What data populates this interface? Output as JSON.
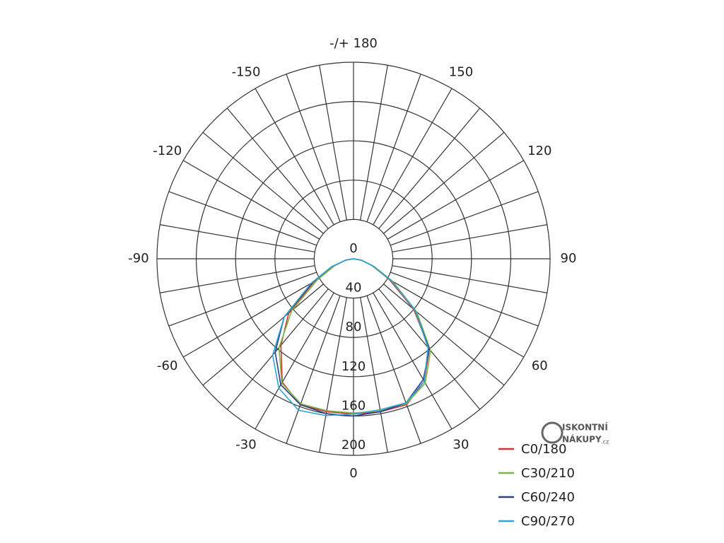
{
  "chart_data": {
    "type": "polar",
    "rlim": [
      0,
      200
    ],
    "rticks": [
      0,
      40,
      80,
      120,
      160,
      200
    ],
    "angle_ticks": [
      0,
      30,
      60,
      90,
      120,
      150,
      {
        "value": 180,
        "label": "-/+ 180"
      },
      -150,
      -120,
      -90,
      -60,
      -30
    ],
    "angle_grid_step": 10,
    "angles": [
      -90,
      -80,
      -70,
      -60,
      -50,
      -40,
      -30,
      -20,
      -10,
      0,
      10,
      20,
      30,
      40,
      50,
      60,
      70,
      80,
      90
    ],
    "series": [
      {
        "name": "C0/180",
        "color": "#d2332d",
        "values": [
          0,
          8,
          22,
          46,
          86,
          115,
          145,
          158,
          158,
          158,
          158,
          158,
          144,
          120,
          80,
          42,
          20,
          8,
          0
        ]
      },
      {
        "name": "C30/210",
        "color": "#7ab648",
        "values": [
          0,
          8,
          20,
          42,
          82,
          118,
          146,
          157,
          157,
          157,
          157,
          157,
          146,
          122,
          84,
          46,
          22,
          8,
          0
        ]
      },
      {
        "name": "C60/240",
        "color": "#2e3d8c",
        "values": [
          0,
          8,
          24,
          48,
          92,
          124,
          148,
          158,
          160,
          160,
          158,
          156,
          142,
          120,
          82,
          44,
          20,
          8,
          0
        ]
      },
      {
        "name": "C90/270",
        "color": "#2fa6d6",
        "values": [
          0,
          8,
          24,
          50,
          92,
          128,
          152,
          164,
          162,
          158,
          156,
          156,
          144,
          118,
          82,
          44,
          20,
          8,
          0
        ]
      }
    ],
    "legend": "bottom-right",
    "watermark": [
      "ISKONTNÍ",
      "NÁKUPY",
      ".cz"
    ]
  }
}
